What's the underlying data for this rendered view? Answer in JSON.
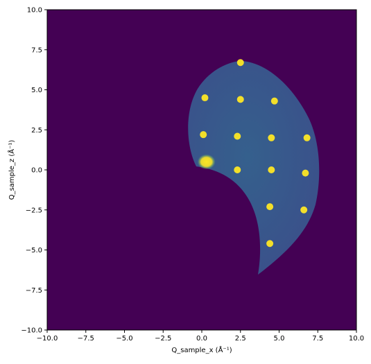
{
  "chart_data": {
    "type": "heatmap",
    "xlabel": "Q_sample_x (Å⁻¹)",
    "ylabel": "Q_sample_z (Å⁻¹)",
    "xlim": [
      -10,
      10
    ],
    "ylim": [
      -10,
      10
    ],
    "xticks": [
      {
        "value": -10,
        "label": "−10.0"
      },
      {
        "value": -7.5,
        "label": "−7.5"
      },
      {
        "value": -5,
        "label": "−5.0"
      },
      {
        "value": -2.5,
        "label": "−2.5"
      },
      {
        "value": 0,
        "label": "0.0"
      },
      {
        "value": 2.5,
        "label": "2.5"
      },
      {
        "value": 5,
        "label": "5.0"
      },
      {
        "value": 7.5,
        "label": "7.5"
      },
      {
        "value": 10,
        "label": "10.0"
      }
    ],
    "yticks": [
      {
        "value": -10,
        "label": "−10.0"
      },
      {
        "value": -7.5,
        "label": "−7.5"
      },
      {
        "value": -5,
        "label": "−5.0"
      },
      {
        "value": -2.5,
        "label": "−2.5"
      },
      {
        "value": 0,
        "label": "0.0"
      },
      {
        "value": 2.5,
        "label": "2.5"
      },
      {
        "value": 5,
        "label": "5.0"
      },
      {
        "value": 7.5,
        "label": "7.5"
      },
      {
        "value": 10,
        "label": "10.0"
      }
    ],
    "background_color": "#440154",
    "peak_color": "#fde725",
    "peaks": {
      "x": [
        2.5,
        0.2,
        2.5,
        4.7,
        0.1,
        2.3,
        4.5,
        6.8,
        2.3,
        4.5,
        6.7,
        4.4,
        6.6,
        4.4,
        0.3
      ],
      "y": [
        6.7,
        4.5,
        4.4,
        4.3,
        2.2,
        2.1,
        2.0,
        2.0,
        0.0,
        0.0,
        -0.2,
        -2.3,
        -2.5,
        -4.6,
        0.5
      ]
    }
  }
}
